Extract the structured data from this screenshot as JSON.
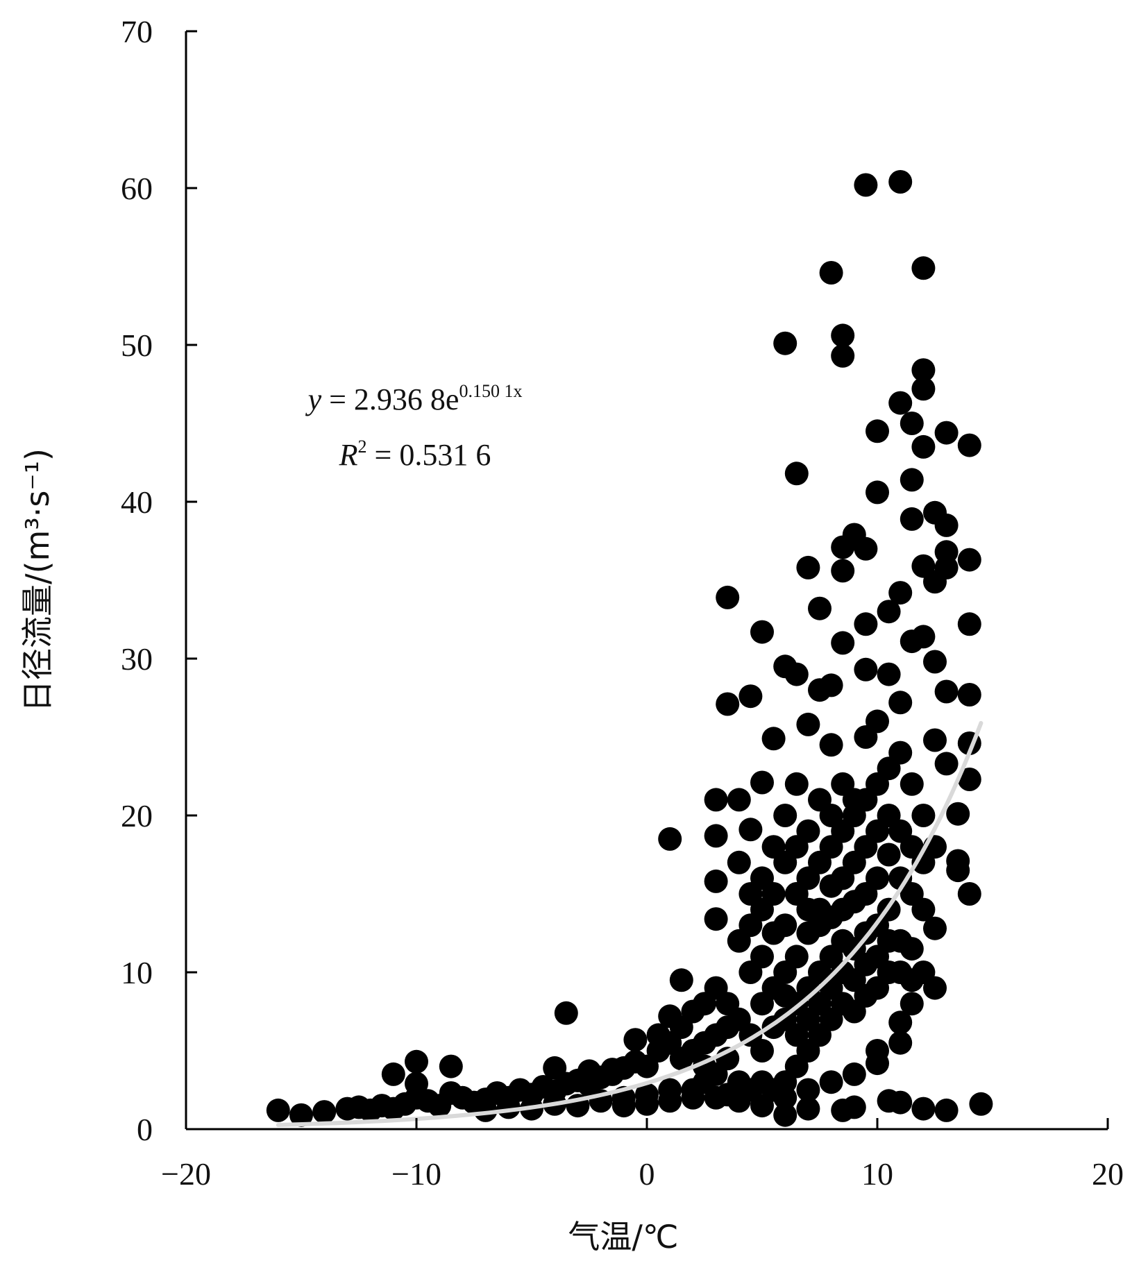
{
  "chart_data": {
    "type": "scatter",
    "xlabel": "气温/℃",
    "ylabel": "日径流量/(m³·s⁻¹)",
    "xlim": [
      -20,
      20
    ],
    "ylim": [
      0,
      70
    ],
    "xticks": [
      "−20",
      "−10",
      "0",
      "10",
      "20"
    ],
    "yticks": [
      "0",
      "10",
      "20",
      "30",
      "40",
      "50",
      "60",
      "70"
    ],
    "grid": false,
    "legend": "none",
    "point_color": "#000000",
    "trend_color": "#d9d9d9",
    "annotation": {
      "equation": {
        "lhs": "y",
        "rel": " = 2.936 8e",
        "exp": "0.150 1x"
      },
      "r2": {
        "lhs": "R",
        "sup": "2",
        "rel": " = 0.531 6"
      }
    },
    "trendline": {
      "type": "exponential",
      "a": 2.9368,
      "b": 0.1501,
      "x_range": [
        -16,
        14.5
      ]
    },
    "points": [
      [
        -16.0,
        1.2
      ],
      [
        -15.0,
        0.9
      ],
      [
        -14.0,
        1.1
      ],
      [
        -13.0,
        1.3
      ],
      [
        -12.5,
        1.4
      ],
      [
        -12.0,
        1.2
      ],
      [
        -11.5,
        1.5
      ],
      [
        -11.0,
        1.3
      ],
      [
        -10.5,
        1.6
      ],
      [
        -10.0,
        2.0
      ],
      [
        -9.5,
        1.8
      ],
      [
        -9.0,
        1.5
      ],
      [
        -8.5,
        2.3
      ],
      [
        -8.0,
        2.0
      ],
      [
        -7.5,
        1.7
      ],
      [
        -7.0,
        1.9
      ],
      [
        -6.5,
        2.3
      ],
      [
        -6.0,
        2.0
      ],
      [
        -5.5,
        2.5
      ],
      [
        -5.0,
        2.2
      ],
      [
        -4.5,
        2.7
      ],
      [
        -4.0,
        2.4
      ],
      [
        -3.5,
        2.9
      ],
      [
        -3.0,
        3.1
      ],
      [
        -2.5,
        2.8
      ],
      [
        -2.0,
        3.3
      ],
      [
        -1.5,
        3.5
      ],
      [
        -1.0,
        3.9
      ],
      [
        -0.5,
        4.3
      ],
      [
        0.0,
        4.0
      ],
      [
        0.5,
        5.0
      ],
      [
        1.0,
        5.5
      ],
      [
        1.5,
        6.5
      ],
      [
        2.0,
        7.5
      ],
      [
        2.5,
        8.0
      ],
      [
        3.0,
        9.0
      ],
      [
        -11.0,
        3.5
      ],
      [
        -10.0,
        4.3
      ],
      [
        -8.5,
        4.0
      ],
      [
        -10.0,
        2.9
      ],
      [
        -3.5,
        7.4
      ],
      [
        -4.0,
        3.9
      ],
      [
        -2.5,
        3.7
      ],
      [
        -1.5,
        3.8
      ],
      [
        -0.5,
        5.7
      ],
      [
        0.5,
        6.0
      ],
      [
        1.0,
        7.2
      ],
      [
        1.5,
        9.5
      ],
      [
        1.0,
        18.5
      ],
      [
        3.0,
        21.0
      ],
      [
        3.0,
        18.7
      ],
      [
        3.0,
        15.8
      ],
      [
        3.0,
        13.4
      ],
      [
        3.5,
        27.1
      ],
      [
        3.5,
        33.9
      ],
      [
        4.0,
        21.0
      ],
      [
        4.5,
        19.1
      ],
      [
        4.5,
        27.6
      ],
      [
        5.0,
        22.1
      ],
      [
        5.0,
        31.7
      ],
      [
        5.5,
        24.9
      ],
      [
        6.0,
        29.5
      ],
      [
        6.0,
        50.1
      ],
      [
        6.5,
        41.8
      ],
      [
        6.5,
        29.0
      ],
      [
        7.0,
        35.8
      ],
      [
        7.0,
        25.8
      ],
      [
        7.5,
        33.2
      ],
      [
        7.5,
        28.0
      ],
      [
        8.0,
        28.3
      ],
      [
        8.0,
        24.5
      ],
      [
        8.0,
        54.6
      ],
      [
        8.5,
        50.6
      ],
      [
        8.5,
        49.3
      ],
      [
        8.5,
        37.1
      ],
      [
        8.5,
        35.6
      ],
      [
        8.5,
        31.0
      ],
      [
        9.0,
        37.9
      ],
      [
        9.5,
        37.0
      ],
      [
        9.5,
        32.2
      ],
      [
        9.5,
        29.3
      ],
      [
        9.5,
        60.2
      ],
      [
        10.0,
        44.5
      ],
      [
        10.0,
        40.6
      ],
      [
        10.5,
        33.0
      ],
      [
        10.5,
        29.0
      ],
      [
        11.0,
        46.3
      ],
      [
        11.0,
        34.2
      ],
      [
        11.0,
        27.2
      ],
      [
        11.0,
        60.4
      ],
      [
        11.5,
        45.0
      ],
      [
        11.5,
        41.4
      ],
      [
        11.5,
        38.9
      ],
      [
        11.5,
        31.1
      ],
      [
        12.0,
        54.9
      ],
      [
        12.0,
        48.4
      ],
      [
        12.0,
        47.2
      ],
      [
        12.0,
        43.5
      ],
      [
        12.0,
        35.9
      ],
      [
        12.0,
        31.4
      ],
      [
        12.5,
        39.3
      ],
      [
        12.5,
        34.9
      ],
      [
        12.5,
        29.8
      ],
      [
        12.5,
        24.8
      ],
      [
        13.0,
        44.4
      ],
      [
        13.0,
        38.5
      ],
      [
        13.0,
        36.8
      ],
      [
        13.0,
        35.8
      ],
      [
        13.0,
        27.9
      ],
      [
        13.0,
        23.3
      ],
      [
        13.5,
        20.1
      ],
      [
        13.5,
        17.1
      ],
      [
        13.5,
        16.5
      ],
      [
        14.0,
        43.6
      ],
      [
        14.0,
        36.3
      ],
      [
        14.0,
        32.2
      ],
      [
        14.0,
        27.7
      ],
      [
        14.0,
        24.6
      ],
      [
        14.0,
        22.3
      ],
      [
        14.0,
        15.0
      ],
      [
        14.5,
        1.6
      ],
      [
        13.0,
        1.2
      ],
      [
        12.0,
        1.3
      ],
      [
        11.0,
        1.7
      ],
      [
        10.5,
        1.8
      ],
      [
        9.0,
        1.4
      ],
      [
        8.5,
        1.2
      ],
      [
        7.0,
        1.3
      ],
      [
        6.0,
        0.9
      ],
      [
        12.5,
        12.8
      ],
      [
        12.5,
        9.0
      ],
      [
        11.5,
        9.5
      ],
      [
        11.0,
        5.5
      ],
      [
        11.0,
        6.8
      ],
      [
        10.0,
        4.2
      ],
      [
        4.0,
        17.0
      ],
      [
        4.5,
        15.0
      ],
      [
        5.0,
        14.0
      ],
      [
        5.5,
        18.0
      ],
      [
        6.0,
        20.0
      ],
      [
        6.5,
        22.0
      ],
      [
        7.0,
        19.0
      ],
      [
        7.5,
        21.0
      ],
      [
        8.0,
        20.0
      ],
      [
        8.5,
        22.0
      ],
      [
        9.0,
        21.0
      ],
      [
        9.5,
        25.0
      ],
      [
        10.0,
        26.0
      ],
      [
        10.5,
        23.0
      ],
      [
        11.0,
        24.0
      ],
      [
        11.5,
        22.0
      ],
      [
        12.0,
        20.0
      ],
      [
        12.5,
        18.0
      ],
      [
        4.0,
        12.0
      ],
      [
        4.5,
        10.0
      ],
      [
        5.0,
        11.0
      ],
      [
        5.5,
        12.5
      ],
      [
        6.0,
        13.0
      ],
      [
        6.5,
        15.0
      ],
      [
        7.0,
        16.0
      ],
      [
        7.5,
        14.0
      ],
      [
        8.0,
        15.5
      ],
      [
        8.5,
        16.0
      ],
      [
        9.0,
        17.0
      ],
      [
        9.5,
        18.0
      ],
      [
        10.0,
        19.0
      ],
      [
        10.5,
        17.5
      ],
      [
        11.0,
        16.0
      ],
      [
        11.5,
        15.0
      ],
      [
        12.0,
        14.0
      ],
      [
        3.5,
        8.0
      ],
      [
        4.0,
        7.0
      ],
      [
        4.5,
        6.0
      ],
      [
        5.0,
        5.0
      ],
      [
        5.5,
        6.5
      ],
      [
        6.0,
        7.0
      ],
      [
        6.5,
        8.0
      ],
      [
        7.0,
        9.0
      ],
      [
        7.5,
        10.0
      ],
      [
        8.0,
        11.0
      ],
      [
        8.5,
        12.0
      ],
      [
        9.0,
        11.5
      ],
      [
        9.5,
        12.5
      ],
      [
        10.0,
        13.0
      ],
      [
        10.5,
        14.0
      ],
      [
        11.0,
        12.0
      ],
      [
        11.5,
        11.5
      ],
      [
        2.5,
        4.0
      ],
      [
        3.0,
        3.5
      ],
      [
        3.5,
        4.5
      ],
      [
        4.0,
        3.0
      ],
      [
        4.5,
        2.5
      ],
      [
        5.0,
        3.0
      ],
      [
        5.5,
        2.5
      ],
      [
        6.0,
        3.0
      ],
      [
        6.5,
        4.0
      ],
      [
        7.0,
        5.0
      ],
      [
        7.5,
        6.0
      ],
      [
        8.0,
        7.0
      ],
      [
        8.5,
        8.0
      ],
      [
        9.0,
        7.5
      ],
      [
        9.5,
        8.5
      ],
      [
        10.0,
        9.0
      ],
      [
        10.5,
        10.0
      ],
      [
        2.0,
        2.5
      ],
      [
        2.5,
        3.0
      ],
      [
        3.0,
        2.0
      ],
      [
        3.5,
        2.2
      ],
      [
        4.0,
        1.8
      ],
      [
        5.0,
        1.5
      ],
      [
        6.0,
        2.0
      ],
      [
        7.0,
        2.5
      ],
      [
        8.0,
        3.0
      ],
      [
        9.0,
        3.5
      ],
      [
        10.0,
        5.0
      ],
      [
        -7.0,
        1.2
      ],
      [
        -6.0,
        1.4
      ],
      [
        -5.0,
        1.3
      ],
      [
        -4.0,
        1.6
      ],
      [
        -3.0,
        1.5
      ],
      [
        -2.0,
        1.8
      ],
      [
        -1.0,
        2.0
      ],
      [
        0.0,
        2.2
      ],
      [
        1.0,
        2.5
      ],
      [
        -1.0,
        1.5
      ],
      [
        0.0,
        1.6
      ],
      [
        1.0,
        1.8
      ],
      [
        2.0,
        2.0
      ],
      [
        3.0,
        6.0
      ],
      [
        3.5,
        6.5
      ],
      [
        2.5,
        5.5
      ],
      [
        2.0,
        5.0
      ],
      [
        1.5,
        4.5
      ],
      [
        6.0,
        10.0
      ],
      [
        6.5,
        11.0
      ],
      [
        7.0,
        12.5
      ],
      [
        7.5,
        13.0
      ],
      [
        8.0,
        13.5
      ],
      [
        8.5,
        14.0
      ],
      [
        9.0,
        14.5
      ],
      [
        9.5,
        15.0
      ],
      [
        10.0,
        16.0
      ],
      [
        10.5,
        12.0
      ],
      [
        11.0,
        10.0
      ],
      [
        11.5,
        8.0
      ],
      [
        12.0,
        10.0
      ],
      [
        6.5,
        6.0
      ],
      [
        7.0,
        7.0
      ],
      [
        7.5,
        8.0
      ],
      [
        8.0,
        9.0
      ],
      [
        8.5,
        10.0
      ],
      [
        9.0,
        9.5
      ],
      [
        9.5,
        10.5
      ],
      [
        10.0,
        11.0
      ],
      [
        5.0,
        8.0
      ],
      [
        5.5,
        9.0
      ],
      [
        6.0,
        8.5
      ],
      [
        4.5,
        13.0
      ],
      [
        5.0,
        16.0
      ],
      [
        5.5,
        15.0
      ],
      [
        6.0,
        17.0
      ],
      [
        6.5,
        18.0
      ],
      [
        7.0,
        14.0
      ],
      [
        7.5,
        17.0
      ],
      [
        8.0,
        18.0
      ],
      [
        8.5,
        19.0
      ],
      [
        9.0,
        20.0
      ],
      [
        9.5,
        21.0
      ],
      [
        10.0,
        22.0
      ],
      [
        10.5,
        20.0
      ],
      [
        11.0,
        19.0
      ],
      [
        11.5,
        18.0
      ],
      [
        12.0,
        17.0
      ]
    ]
  }
}
